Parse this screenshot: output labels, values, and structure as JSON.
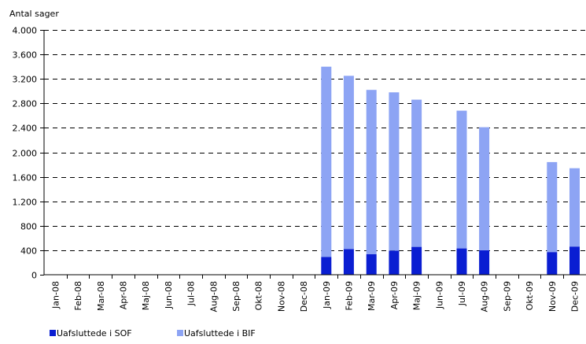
{
  "chart_data": {
    "type": "bar",
    "stacked": true,
    "ylabel": "Antal sager",
    "ylim": [
      0,
      4000
    ],
    "yticks": [
      0,
      400,
      800,
      1200,
      1600,
      2000,
      2400,
      2800,
      3200,
      3600,
      4000
    ],
    "ytick_labels": [
      "0",
      "400",
      "800",
      "1.200",
      "1.600",
      "2.000",
      "2.400",
      "2.800",
      "3.200",
      "3.600",
      "4.000"
    ],
    "grid": "horizontal-dashed",
    "legend_position": "bottom-left",
    "categories": [
      "Jan-08",
      "Feb-08",
      "Mar-08",
      "Apr-08",
      "Maj-08",
      "Jun-08",
      "Jul-08",
      "Aug-08",
      "Sep-08",
      "Okt-08",
      "Nov-08",
      "Dec-08",
      "Jan-09",
      "Feb-09",
      "Mar-09",
      "Apr-09",
      "Maj-09",
      "Jun-09",
      "Jul-09",
      "Aug-09",
      "Sep-09",
      "Okt-09",
      "Nov-09",
      "Dec-09"
    ],
    "series": [
      {
        "name": "Uafsluttede i SOF",
        "color": "#0a1ed2",
        "values": [
          null,
          null,
          null,
          null,
          null,
          null,
          null,
          null,
          null,
          null,
          null,
          null,
          290,
          420,
          335,
          395,
          455,
          null,
          430,
          400,
          null,
          null,
          370,
          460
        ]
      },
      {
        "name": "Uafsluttede i BIF",
        "color": "#8da4f4",
        "values": [
          null,
          null,
          null,
          null,
          null,
          null,
          null,
          null,
          null,
          null,
          null,
          null,
          3110,
          2830,
          2685,
          2585,
          2405,
          null,
          2250,
          2010,
          null,
          null,
          1470,
          1280
        ]
      }
    ]
  }
}
